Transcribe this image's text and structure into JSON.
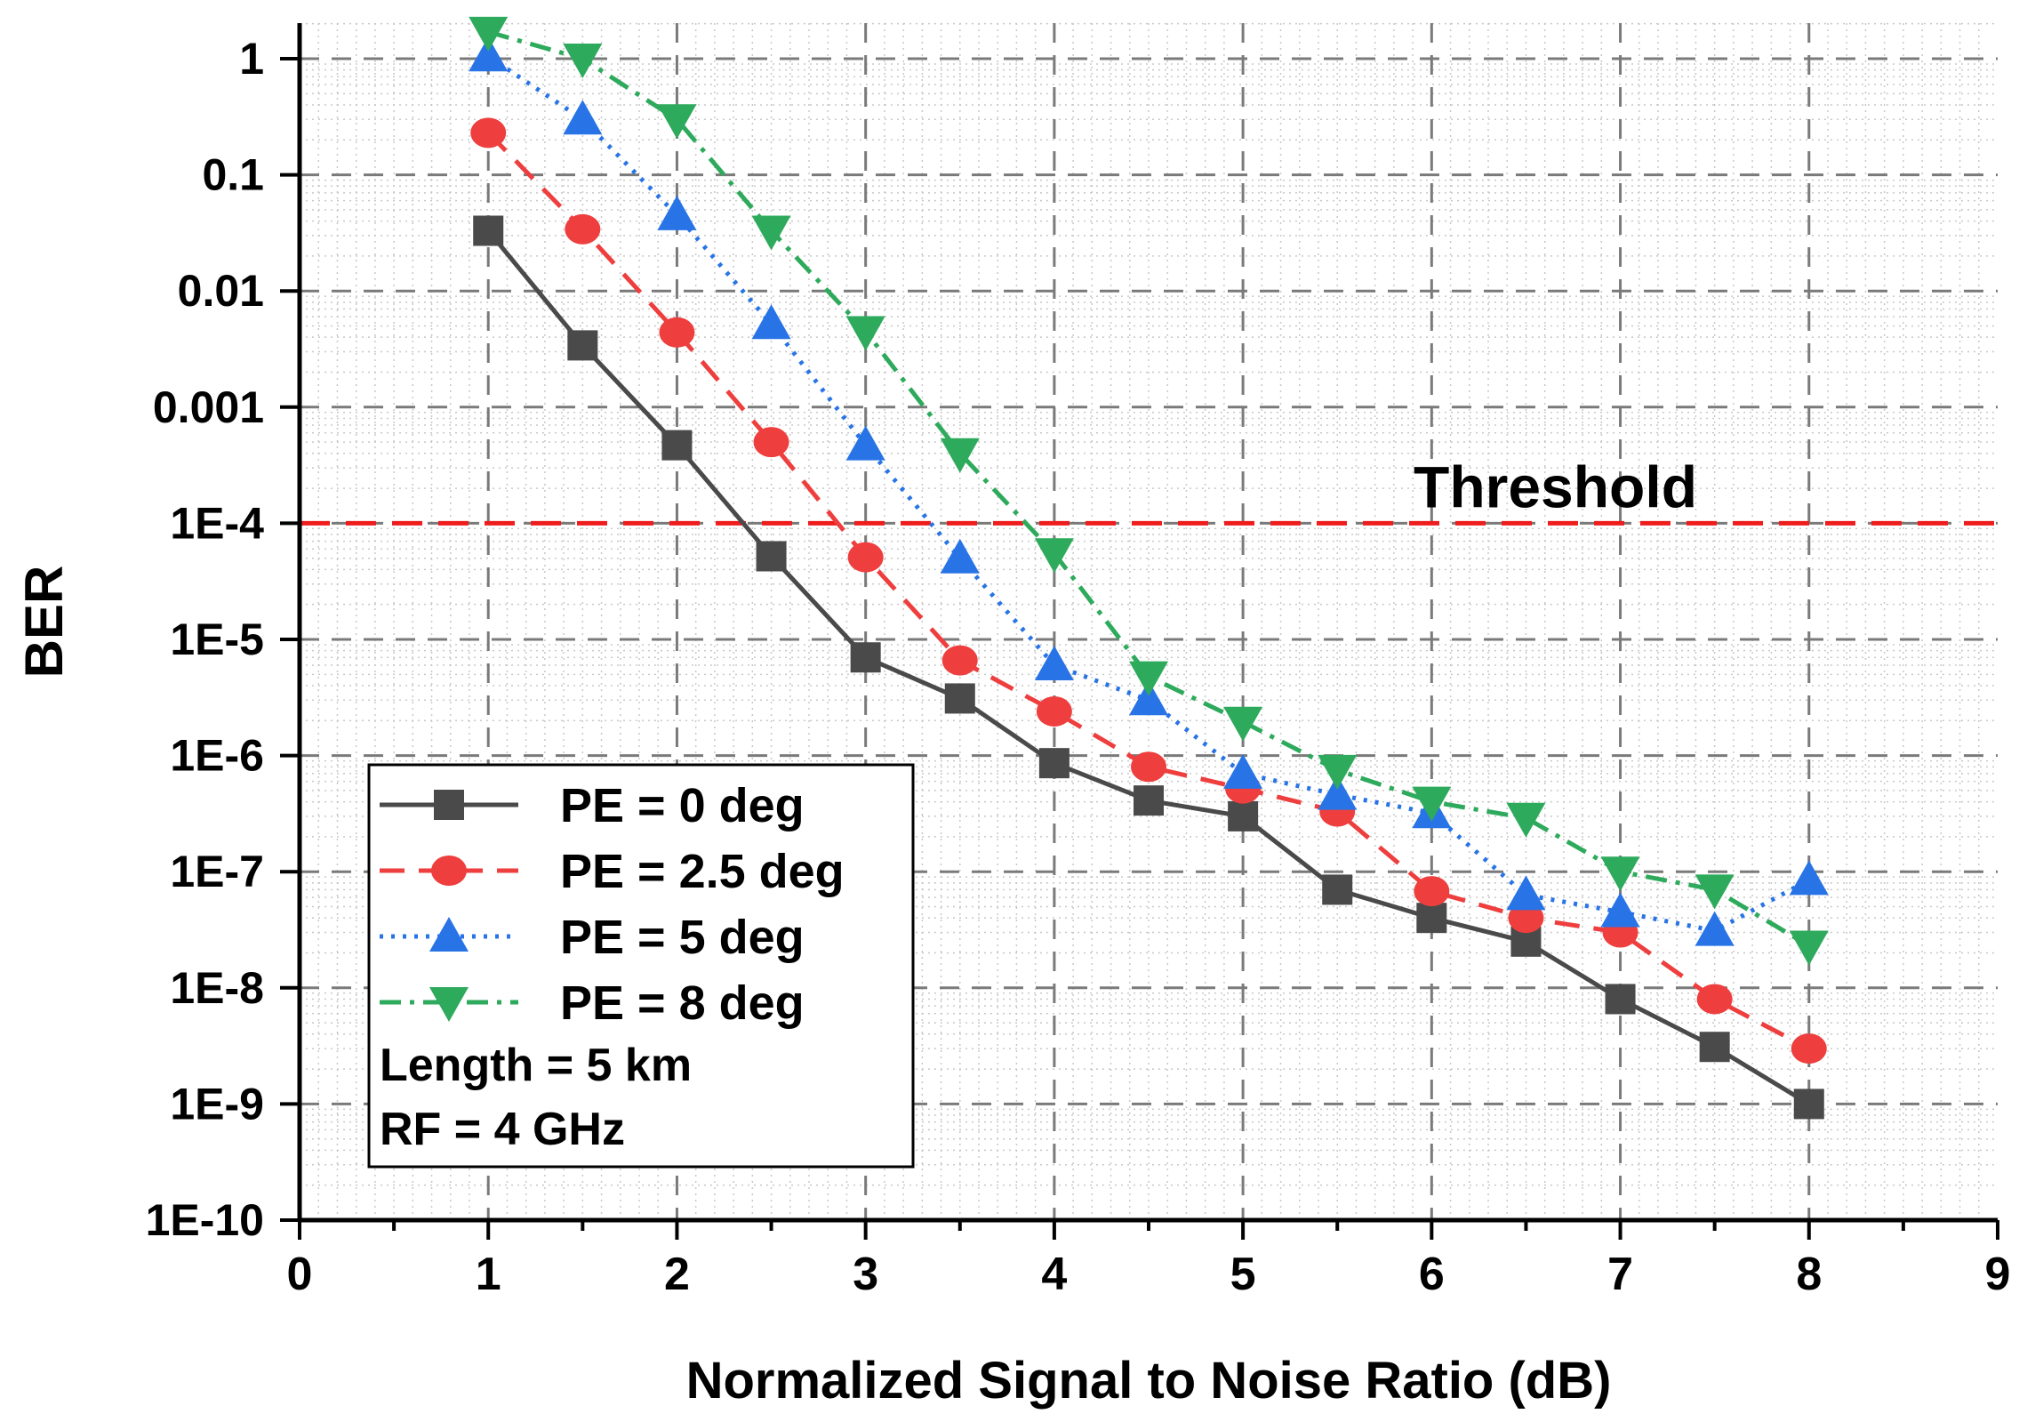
{
  "chart_data": {
    "type": "line",
    "title": "",
    "xlabel": "Normalized Signal to Noise Ratio (dB)",
    "ylabel": "BER",
    "y_scale": "log",
    "xlim": [
      0,
      9
    ],
    "ylim": [
      1e-10,
      2
    ],
    "grid": true,
    "legend_position": "bottom-left",
    "x_ticks": [
      "0",
      "1",
      "2",
      "3",
      "4",
      "5",
      "6",
      "7",
      "8",
      "9"
    ],
    "y_ticks": [
      "1",
      "0.1",
      "0.01",
      "0.001",
      "1E-4",
      "1E-5",
      "1E-6",
      "1E-7",
      "1E-8",
      "1E-9",
      "1E-10"
    ],
    "x": [
      1,
      1.5,
      2,
      2.5,
      3,
      3.5,
      4,
      4.5,
      5,
      5.5,
      6,
      6.5,
      7,
      7.5,
      8
    ],
    "series": [
      {
        "name": "PE = 0 deg",
        "color": "#4a4a4a",
        "marker": "square",
        "line_style": "solid",
        "values": [
          0.033,
          0.0034,
          0.00047,
          5.2e-05,
          7e-06,
          3.1e-06,
          8.6e-07,
          4.1e-07,
          3e-07,
          7e-08,
          4e-08,
          2.5e-08,
          8e-09,
          3.1e-09,
          1e-09
        ]
      },
      {
        "name": "PE = 2.5 deg",
        "color": "#ee3e3e",
        "marker": "circle",
        "line_style": "dashed",
        "values": [
          0.23,
          0.034,
          0.0044,
          0.0005,
          5.1e-05,
          6.6e-06,
          2.4e-06,
          8e-07,
          5.2e-07,
          3.3e-07,
          6.8e-08,
          4e-08,
          3e-08,
          8e-09,
          3e-09
        ]
      },
      {
        "name": "PE = 5 deg",
        "color": "#2874e6",
        "marker": "triangle-up",
        "line_style": "dotted",
        "values": [
          1.05,
          0.3,
          0.045,
          0.0052,
          0.00047,
          5e-05,
          6e-06,
          3e-06,
          7e-07,
          4.6e-07,
          3.2e-07,
          6.3e-08,
          4.5e-08,
          3.1e-08,
          8.5e-08
        ]
      },
      {
        "name": "PE = 8 deg",
        "color": "#2eaa5c",
        "marker": "triangle-down",
        "line_style": "dash-dot",
        "values": [
          1.7,
          1.0,
          0.3,
          0.033,
          0.0045,
          0.0004,
          5.5e-05,
          4.8e-06,
          1.95e-06,
          7.5e-07,
          4e-07,
          2.9e-07,
          1e-07,
          7e-08,
          2.3e-08
        ]
      }
    ],
    "threshold": {
      "label": "Threshold",
      "value": 0.0001,
      "color": "#ee1c1c"
    },
    "annotations": [
      "Length = 5 km",
      "RF = 4 GHz"
    ]
  }
}
